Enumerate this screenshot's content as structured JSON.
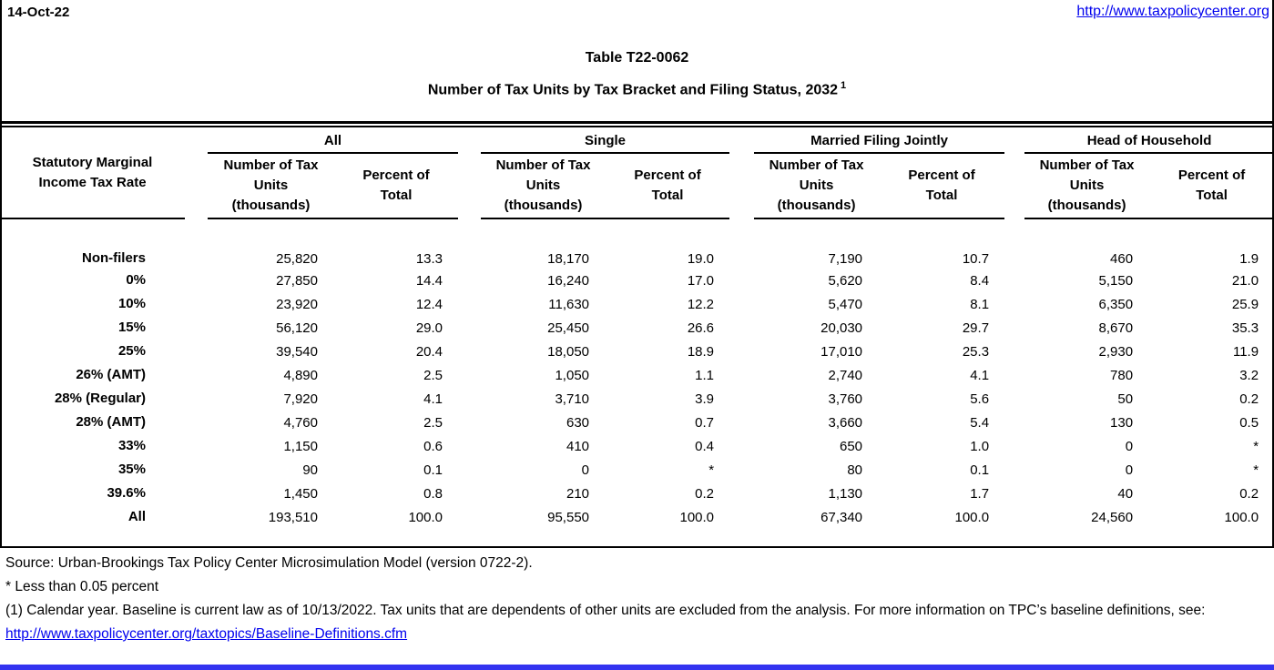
{
  "page": {
    "date": "14-Oct-22",
    "site_url": "http://www.taxpolicycenter.org",
    "title_line1": "Table T22-0062",
    "title_line2": "Number of Tax Units by Tax Bracket and Filing Status, 2032",
    "title_footnote_marker": "1"
  },
  "table": {
    "row_header": "Statutory Marginal\nIncome Tax Rate",
    "groups": [
      {
        "label": "All"
      },
      {
        "label": "Single"
      },
      {
        "label": "Married Filing Jointly"
      },
      {
        "label": "Head of Household"
      }
    ],
    "sub_units": "Number of Tax\nUnits\n(thousands)",
    "sub_percent": "Percent of\nTotal",
    "rows": [
      {
        "label": "Non-filers",
        "all_units": "25,820",
        "all_pct": "13.3",
        "single_units": "18,170",
        "single_pct": "19.0",
        "mfj_units": "7,190",
        "mfj_pct": "10.7",
        "hoh_units": "460",
        "hoh_pct": "1.9"
      },
      {
        "label": "0%",
        "all_units": "27,850",
        "all_pct": "14.4",
        "single_units": "16,240",
        "single_pct": "17.0",
        "mfj_units": "5,620",
        "mfj_pct": "8.4",
        "hoh_units": "5,150",
        "hoh_pct": "21.0"
      },
      {
        "label": "10%",
        "all_units": "23,920",
        "all_pct": "12.4",
        "single_units": "11,630",
        "single_pct": "12.2",
        "mfj_units": "5,470",
        "mfj_pct": "8.1",
        "hoh_units": "6,350",
        "hoh_pct": "25.9"
      },
      {
        "label": "15%",
        "all_units": "56,120",
        "all_pct": "29.0",
        "single_units": "25,450",
        "single_pct": "26.6",
        "mfj_units": "20,030",
        "mfj_pct": "29.7",
        "hoh_units": "8,670",
        "hoh_pct": "35.3"
      },
      {
        "label": "25%",
        "all_units": "39,540",
        "all_pct": "20.4",
        "single_units": "18,050",
        "single_pct": "18.9",
        "mfj_units": "17,010",
        "mfj_pct": "25.3",
        "hoh_units": "2,930",
        "hoh_pct": "11.9"
      },
      {
        "label": "26% (AMT)",
        "all_units": "4,890",
        "all_pct": "2.5",
        "single_units": "1,050",
        "single_pct": "1.1",
        "mfj_units": "2,740",
        "mfj_pct": "4.1",
        "hoh_units": "780",
        "hoh_pct": "3.2"
      },
      {
        "label": "28% (Regular)",
        "all_units": "7,920",
        "all_pct": "4.1",
        "single_units": "3,710",
        "single_pct": "3.9",
        "mfj_units": "3,760",
        "mfj_pct": "5.6",
        "hoh_units": "50",
        "hoh_pct": "0.2"
      },
      {
        "label": "28% (AMT)",
        "all_units": "4,760",
        "all_pct": "2.5",
        "single_units": "630",
        "single_pct": "0.7",
        "mfj_units": "3,660",
        "mfj_pct": "5.4",
        "hoh_units": "130",
        "hoh_pct": "0.5"
      },
      {
        "label": "33%",
        "all_units": "1,150",
        "all_pct": "0.6",
        "single_units": "410",
        "single_pct": "0.4",
        "mfj_units": "650",
        "mfj_pct": "1.0",
        "hoh_units": "0",
        "hoh_pct": "*"
      },
      {
        "label": "35%",
        "all_units": "90",
        "all_pct": "0.1",
        "single_units": "0",
        "single_pct": "*",
        "mfj_units": "80",
        "mfj_pct": "0.1",
        "hoh_units": "0",
        "hoh_pct": "*"
      },
      {
        "label": "39.6%",
        "all_units": "1,450",
        "all_pct": "0.8",
        "single_units": "210",
        "single_pct": "0.2",
        "mfj_units": "1,130",
        "mfj_pct": "1.7",
        "hoh_units": "40",
        "hoh_pct": "0.2"
      },
      {
        "label": "All",
        "all_units": "193,510",
        "all_pct": "100.0",
        "single_units": "95,550",
        "single_pct": "100.0",
        "mfj_units": "67,340",
        "mfj_pct": "100.0",
        "hoh_units": "24,560",
        "hoh_pct": "100.0"
      }
    ]
  },
  "footer": {
    "source": "Source: Urban-Brookings Tax Policy Center Microsimulation Model (version 0722-2).",
    "asterisk_note": "* Less than 0.05 percent",
    "footnote1": "(1) Calendar year. Baseline is current law as of 10/13/2022. Tax units that are dependents of other units are excluded from the analysis. For more information on TPC’s baseline definitions, see:",
    "baseline_link": "http://www.taxpolicycenter.org/taxtopics/Baseline-Definitions.cfm"
  },
  "colors": {
    "link_blue": "#0000EE",
    "bottom_bar_blue": "#3333F0",
    "line_black": "#000000"
  }
}
